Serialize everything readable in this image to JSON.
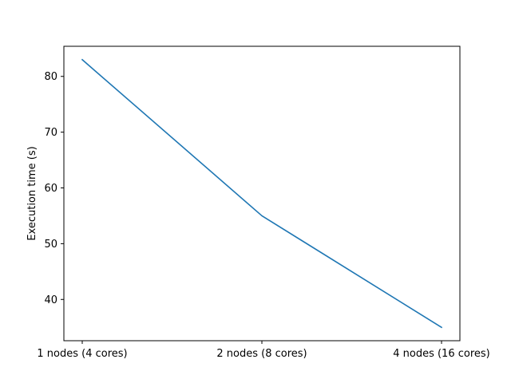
{
  "chart_data": {
    "type": "line",
    "title": "",
    "xlabel": "",
    "ylabel": "Execution time (s)",
    "categories": [
      "1 nodes (4 cores)",
      "2 nodes (8 cores)",
      "4 nodes (16 cores)"
    ],
    "series": [
      {
        "values": [
          83,
          55,
          35
        ],
        "color": "#1f77b4"
      }
    ],
    "yticks": [
      40,
      50,
      60,
      70,
      80
    ],
    "ylim": [
      32.6,
      85.4
    ],
    "grid": false,
    "legend": "none"
  }
}
